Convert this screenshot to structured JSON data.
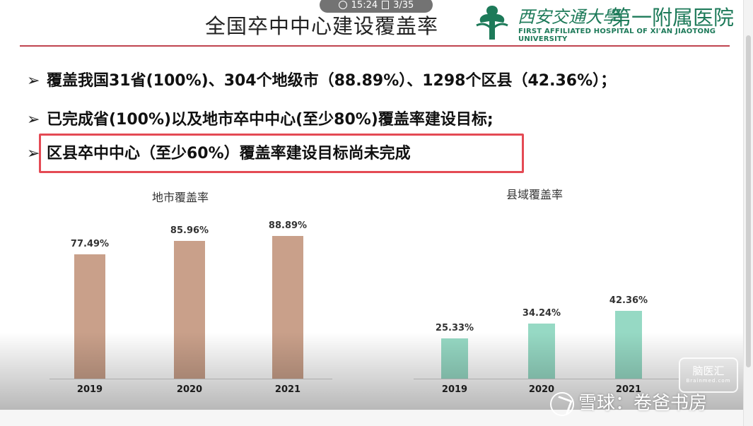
{
  "status": {
    "time": "15:24",
    "page": "3/35"
  },
  "slide": {
    "title": "全国卒中中心建设覆盖率",
    "logo": {
      "cn_calligraphy": "西安交通大學",
      "cn_main": "第一附属医院",
      "en": "FIRST AFFILIATED HOSPITAL OF XI'AN JIAOTONG UNIVERSITY"
    },
    "bullets": [
      "覆盖我国31省(100%)、304个地级市（88.89%）、1298个区县（42.36%）；",
      "已完成省(100%)以及地市卒中中心(至少80%)覆盖率建设目标;",
      "区县卒中中心（至少60%）覆盖率建设目标尚未完成"
    ],
    "bullet_marker": "➢"
  },
  "chart_data": [
    {
      "type": "bar",
      "title": "地市覆盖率",
      "categories": [
        "2019",
        "2020",
        "2021"
      ],
      "values": [
        77.49,
        85.96,
        88.89
      ],
      "labels": [
        "77.49%",
        "85.96%",
        "88.89%"
      ],
      "color": "#c9a08a",
      "ylim": [
        0,
        100
      ]
    },
    {
      "type": "bar",
      "title": "县域覆盖率",
      "categories": [
        "2019",
        "2020",
        "2021"
      ],
      "values": [
        25.33,
        34.24,
        42.36
      ],
      "labels": [
        "25.33%",
        "34.24%",
        "42.36%"
      ],
      "color": "#96d9c4",
      "ylim": [
        0,
        100
      ]
    }
  ],
  "watermark": {
    "badge_main": "脑医汇",
    "badge_sub": "Brainmed.com",
    "text": "雪球：卷爸书房"
  }
}
